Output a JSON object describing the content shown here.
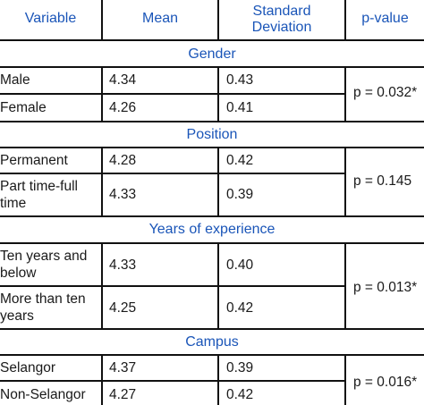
{
  "header": {
    "variable": "Variable",
    "mean": "Mean",
    "sd_line1": "Standard",
    "sd_line2": "Deviation",
    "pvalue": "p-value"
  },
  "sections": [
    {
      "title": "Gender",
      "p_value": "p = 0.032*",
      "rows": [
        {
          "label": "Male",
          "mean": "4.34",
          "sd": "0.43"
        },
        {
          "label": "Female",
          "mean": "4.26",
          "sd": "0.41"
        }
      ]
    },
    {
      "title": "Position",
      "p_value": "p = 0.145",
      "rows": [
        {
          "label": "Permanent",
          "mean": "4.28",
          "sd": "0.42"
        },
        {
          "label_line1": "Part time-full",
          "label_line2": "time",
          "mean": "4.33",
          "sd": "0.39"
        }
      ]
    },
    {
      "title": "Years of experience",
      "p_value": "p = 0.013*",
      "rows": [
        {
          "label_line1": "Ten years and",
          "label_line2": "below",
          "mean": "4.33",
          "sd": "0.40"
        },
        {
          "label_line1": "More than ten",
          "label_line2": "years",
          "mean": "4.25",
          "sd": "0.42"
        }
      ]
    },
    {
      "title": "Campus",
      "p_value": "p = 0.016*",
      "rows": [
        {
          "label": "Selangor",
          "mean": "4.37",
          "sd": "0.39"
        },
        {
          "label": "Non-Selangor",
          "mean": "4.27",
          "sd": "0.42"
        }
      ]
    }
  ]
}
